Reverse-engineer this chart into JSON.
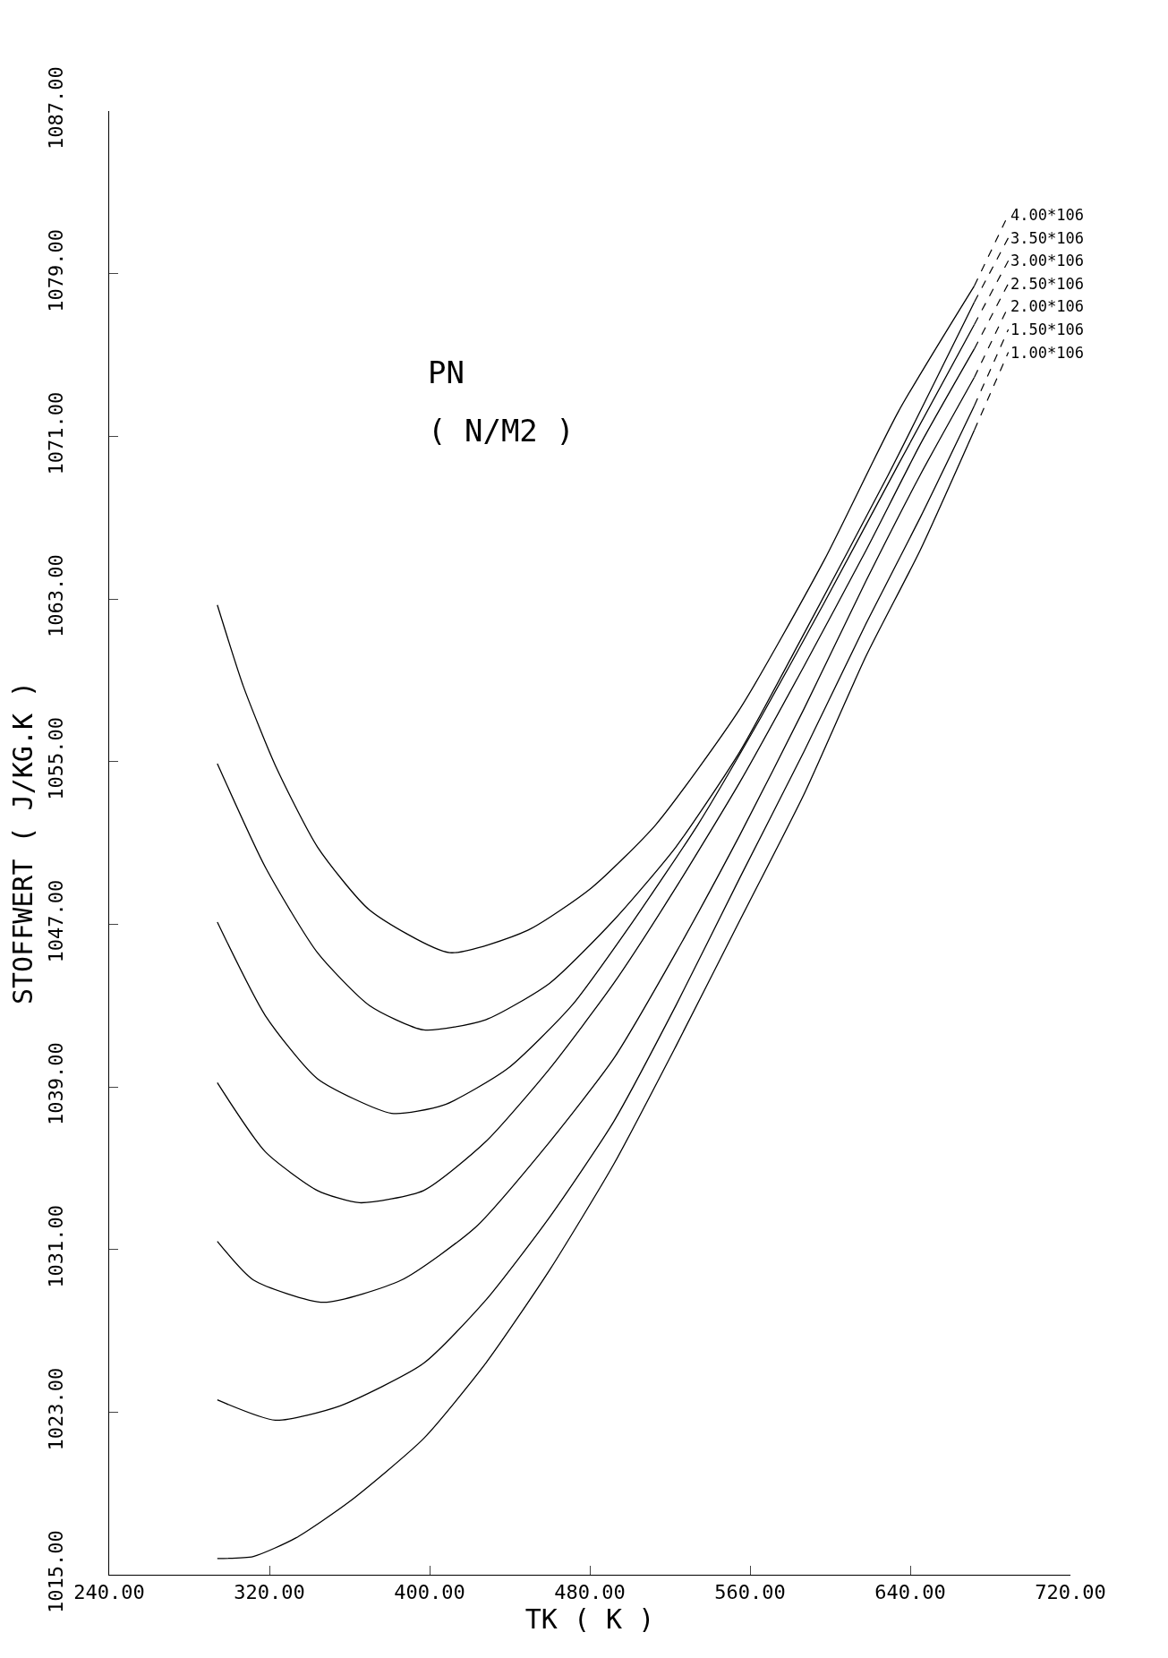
{
  "chart_data": {
    "type": "line",
    "xlabel": "TK ( K )",
    "ylabel": "STOFFWERT ( J/KG.K )",
    "annotations": [
      "PN",
      "( N/M2 )"
    ],
    "xlim": [
      240,
      720
    ],
    "xticks": [
      {
        "value": 240,
        "label": "240.00"
      },
      {
        "value": 320,
        "label": "320.00"
      },
      {
        "value": 400,
        "label": "400.00"
      },
      {
        "value": 480,
        "label": "480.00"
      },
      {
        "value": 560,
        "label": "560.00"
      },
      {
        "value": 640,
        "label": "640.00"
      },
      {
        "value": 720,
        "label": "720.00"
      }
    ],
    "ylim": [
      1015,
      1087
    ],
    "yticks": [
      {
        "value": 1015,
        "label": "1015.00"
      },
      {
        "value": 1023,
        "label": "1023.00"
      },
      {
        "value": 1031,
        "label": "1031.00"
      },
      {
        "value": 1039,
        "label": "1039.00"
      },
      {
        "value": 1047,
        "label": "1047.00"
      },
      {
        "value": 1055,
        "label": "1055.00"
      },
      {
        "value": 1063,
        "label": "1063.00"
      },
      {
        "value": 1071,
        "label": "1071.00"
      },
      {
        "value": 1079,
        "label": "1079.00"
      },
      {
        "value": 1087,
        "label": "1087.00"
      }
    ],
    "grid": false,
    "legend": false,
    "marker": "none",
    "line_style": "solid",
    "series": [
      {
        "name": "4.00*106",
        "color": "#000000",
        "x": [
          294,
          307,
          323,
          344,
          370,
          410,
          449,
          481,
          513,
          555,
          597,
          634,
          672
        ],
        "values": [
          1062.7,
          1058.7,
          1054.8,
          1050.8,
          1047.7,
          1045.6,
          1046.7,
          1048.8,
          1051.9,
          1057.6,
          1064.9,
          1072.2,
          1078.4
        ]
      },
      {
        "name": "3.50*106",
        "color": "#000000",
        "x": [
          294,
          318,
          344,
          370,
          397,
          428,
          460,
          492,
          523,
          555,
          587,
          629,
          672
        ],
        "values": [
          1054.9,
          1049.8,
          1045.6,
          1043.0,
          1041.8,
          1042.3,
          1044.1,
          1047.2,
          1050.8,
          1055.5,
          1061.3,
          1069.1,
          1077.6
        ]
      },
      {
        "name": "3.00*106",
        "color": "#000000",
        "x": [
          294,
          318,
          344,
          381,
          407,
          439,
          471,
          502,
          534,
          565,
          597,
          634,
          672
        ],
        "values": [
          1047.1,
          1042.5,
          1039.4,
          1037.7,
          1038.1,
          1039.9,
          1043.0,
          1047.2,
          1051.9,
          1057.1,
          1062.8,
          1069.6,
          1076.5
        ]
      },
      {
        "name": "2.50*106",
        "color": "#000000",
        "x": [
          294,
          318,
          344,
          365,
          397,
          428,
          460,
          492,
          523,
          555,
          587,
          618,
          645,
          672
        ],
        "values": [
          1039.2,
          1035.8,
          1033.9,
          1033.3,
          1033.9,
          1036.3,
          1039.9,
          1044.1,
          1048.8,
          1054.0,
          1059.7,
          1065.4,
          1070.6,
          1075.3
        ]
      },
      {
        "name": "2.00*106",
        "color": "#000000",
        "x": [
          294,
          312,
          347,
          386,
          423,
          460,
          492,
          523,
          555,
          587,
          618,
          645,
          672
        ],
        "values": [
          1031.4,
          1029.5,
          1028.4,
          1029.5,
          1032.1,
          1036.3,
          1040.4,
          1045.6,
          1051.4,
          1057.6,
          1063.9,
          1069.1,
          1073.9
        ]
      },
      {
        "name": "1.50*106",
        "color": "#000000",
        "x": [
          294,
          323,
          355,
          397,
          428,
          460,
          492,
          523,
          555,
          587,
          618,
          645,
          672
        ],
        "values": [
          1023.6,
          1022.6,
          1023.3,
          1025.4,
          1028.5,
          1032.6,
          1037.3,
          1043.0,
          1049.3,
          1055.5,
          1061.8,
          1067.0,
          1072.5
        ]
      },
      {
        "name": "1.00*106",
        "color": "#000000",
        "x": [
          294,
          312,
          333,
          360,
          397,
          428,
          460,
          492,
          523,
          555,
          587,
          618,
          645,
          672
        ],
        "values": [
          1015.8,
          1015.9,
          1016.8,
          1018.6,
          1021.7,
          1025.4,
          1030.0,
          1035.2,
          1041.0,
          1047.2,
          1053.4,
          1060.2,
          1065.4,
          1071.3
        ]
      }
    ]
  }
}
